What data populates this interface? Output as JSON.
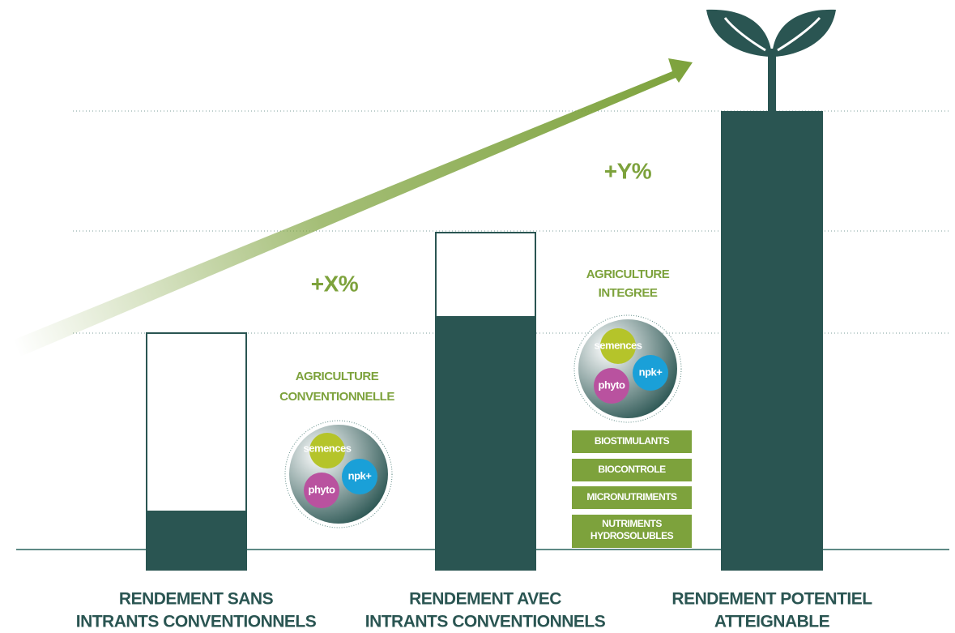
{
  "gains": [
    "+X%",
    "+Y%"
  ],
  "bars": [
    {
      "label_lines": [
        "RENDEMENT SANS",
        "INTRANTS CONVENTIONNELS"
      ]
    },
    {
      "label_lines": [
        "RENDEMENT AVEC",
        "INTRANTS CONVENTIONNELS"
      ]
    },
    {
      "label_lines": [
        "RENDEMENT POTENTIEL",
        "ATTEIGNABLE"
      ]
    }
  ],
  "practices": [
    {
      "title_lines": [
        "AGRICULTURE",
        "CONVENTIONNELLE"
      ],
      "inputs": [
        "semences",
        "npk+",
        "phyto"
      ]
    },
    {
      "title_lines": [
        "AGRICULTURE",
        "INTEGREE"
      ],
      "inputs": [
        "semences",
        "npk+",
        "phyto"
      ],
      "products": [
        [
          "BIOSTIMULANTS"
        ],
        [
          "BIOCONTROLE"
        ],
        [
          "MICRONUTRIMENTS"
        ],
        [
          "NUTRIMENTS",
          "HYDROSOLUBLES"
        ]
      ]
    }
  ]
}
